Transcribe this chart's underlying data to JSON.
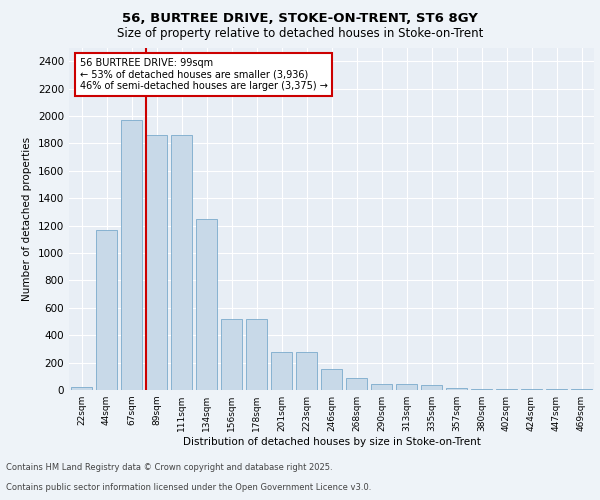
{
  "title1": "56, BURTREE DRIVE, STOKE-ON-TRENT, ST6 8GY",
  "title2": "Size of property relative to detached houses in Stoke-on-Trent",
  "xlabel": "Distribution of detached houses by size in Stoke-on-Trent",
  "ylabel": "Number of detached properties",
  "categories": [
    "22sqm",
    "44sqm",
    "67sqm",
    "89sqm",
    "111sqm",
    "134sqm",
    "156sqm",
    "178sqm",
    "201sqm",
    "223sqm",
    "246sqm",
    "268sqm",
    "290sqm",
    "313sqm",
    "335sqm",
    "357sqm",
    "380sqm",
    "402sqm",
    "424sqm",
    "447sqm",
    "469sqm"
  ],
  "values": [
    25,
    1170,
    1970,
    1860,
    1860,
    1250,
    515,
    515,
    275,
    275,
    155,
    85,
    45,
    45,
    35,
    15,
    5,
    5,
    5,
    5,
    5
  ],
  "bar_color": "#c8d9e8",
  "bar_edge_color": "#7aaacc",
  "property_line_color": "#cc0000",
  "annotation_text": "56 BURTREE DRIVE: 99sqm\n← 53% of detached houses are smaller (3,936)\n46% of semi-detached houses are larger (3,375) →",
  "annotation_box_color": "#ffffff",
  "annotation_box_edge": "#cc0000",
  "ylim": [
    0,
    2500
  ],
  "yticks": [
    0,
    200,
    400,
    600,
    800,
    1000,
    1200,
    1400,
    1600,
    1800,
    2000,
    2200,
    2400
  ],
  "footer1": "Contains HM Land Registry data © Crown copyright and database right 2025.",
  "footer2": "Contains public sector information licensed under the Open Government Licence v3.0.",
  "bg_color": "#eef3f8",
  "plot_bg_color": "#e8eef5"
}
